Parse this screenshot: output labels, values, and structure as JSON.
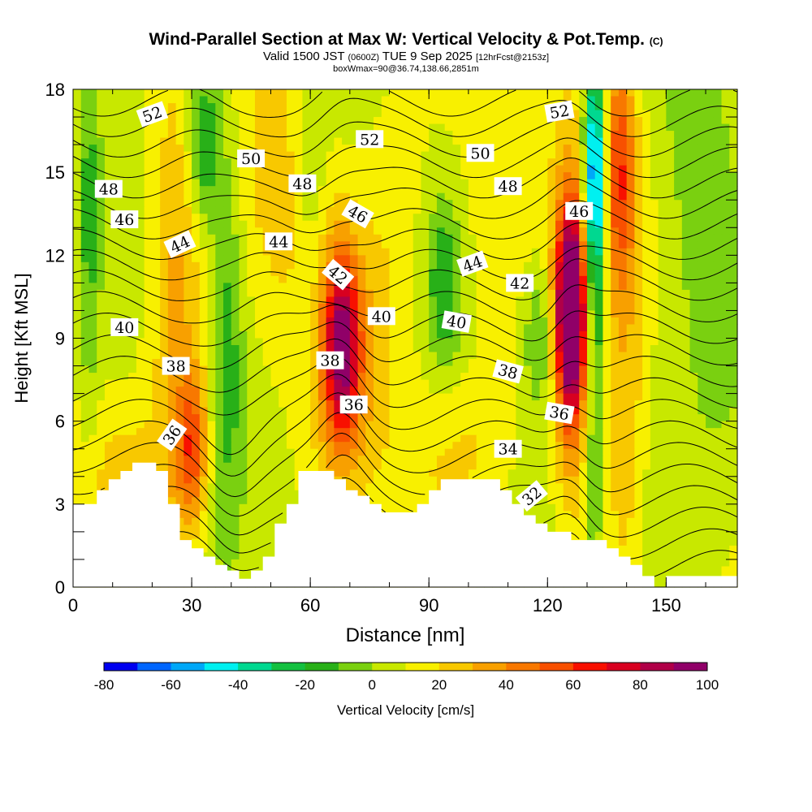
{
  "header": {
    "title": "Wind-Parallel Section at Max W: Vertical Velocity & Pot.Temp.",
    "copyright": "(C)",
    "valid_prefix": "Valid 1500 JST",
    "valid_utc": "(0600Z)",
    "valid_date": "TUE 9 Sep 2025",
    "forecast_info": "[12hrFcst@2153z]",
    "box_info": "boxWmax=90@36.74,138.66,2851m"
  },
  "chart_data": {
    "type": "heatmap",
    "title": "Wind-Parallel Section at Max W: Vertical Velocity & Pot.Temp.",
    "xlabel": "Distance [nm]",
    "ylabel": "Height [Kft MSL]",
    "xlim": [
      0,
      168
    ],
    "ylim": [
      0,
      18
    ],
    "x_ticks": [
      0,
      30,
      60,
      90,
      120,
      150
    ],
    "y_ticks": [
      0,
      3,
      6,
      9,
      12,
      15,
      18
    ],
    "colorbar": {
      "label": "Vertical Velocity [cm/s]",
      "range": [
        -80,
        100
      ],
      "step": 10,
      "tick_labels": [
        -80,
        -60,
        -40,
        -20,
        0,
        20,
        40,
        60,
        80,
        100
      ],
      "colors": [
        "#0000f0",
        "#0066ff",
        "#00a8f8",
        "#00f0f0",
        "#00d890",
        "#14c040",
        "#28b018",
        "#7ad010",
        "#c8e800",
        "#f8f000",
        "#f8c800",
        "#f8a000",
        "#f87800",
        "#f85000",
        "#f81000",
        "#d80020",
        "#b00048",
        "#900068"
      ]
    },
    "velocity_field": [
      {
        "x": 4,
        "y": 13,
        "sx": 2,
        "sy": 5,
        "v": -22
      },
      {
        "x": 26,
        "y": 12,
        "sx": 5,
        "sy": 6,
        "v": 26
      },
      {
        "x": 30,
        "y": 5,
        "sx": 3,
        "sy": 2,
        "v": 44
      },
      {
        "x": 33,
        "y": 16,
        "sx": 3,
        "sy": 2,
        "v": -32
      },
      {
        "x": 39,
        "y": 9,
        "sx": 3,
        "sy": 5,
        "v": -22
      },
      {
        "x": 52,
        "y": 13,
        "sx": 8,
        "sy": 4,
        "v": 14
      },
      {
        "x": 60,
        "y": 15,
        "sx": 3,
        "sy": 4,
        "v": -16
      },
      {
        "x": 68,
        "y": 8.8,
        "sx": 3,
        "sy": 2.2,
        "v": 64
      },
      {
        "x": 68,
        "y": 7.5,
        "sx": 6,
        "sy": 3.5,
        "v": 25
      },
      {
        "x": 82,
        "y": 14,
        "sx": 6,
        "sy": 5,
        "v": 12
      },
      {
        "x": 94,
        "y": 11,
        "sx": 3,
        "sy": 2,
        "v": -25
      },
      {
        "x": 104,
        "y": 13,
        "sx": 7,
        "sy": 5,
        "v": 8
      },
      {
        "x": 118,
        "y": 9,
        "sx": 3,
        "sy": 2,
        "v": -22
      },
      {
        "x": 126,
        "y": 10,
        "sx": 2.5,
        "sy": 2.3,
        "v": 96
      },
      {
        "x": 126,
        "y": 9.5,
        "sx": 3.5,
        "sy": 4.5,
        "v": 42
      },
      {
        "x": 132,
        "y": 15,
        "sx": 2,
        "sy": 3,
        "v": -70
      },
      {
        "x": 132,
        "y": 8,
        "sx": 2,
        "sy": 6,
        "v": -30
      },
      {
        "x": 138,
        "y": 15,
        "sx": 3,
        "sy": 3,
        "v": 44
      },
      {
        "x": 140,
        "y": 9,
        "sx": 5,
        "sy": 7,
        "v": 16
      },
      {
        "x": 148,
        "y": 5,
        "sx": 4,
        "sy": 4,
        "v": -14
      },
      {
        "x": 160,
        "y": 12,
        "sx": 5,
        "sy": 6,
        "v": -14
      },
      {
        "x": 15,
        "y": 3.5,
        "sx": 8,
        "sy": 2,
        "v": 14
      },
      {
        "x": 100,
        "y": 5,
        "sx": 10,
        "sy": 2,
        "v": 14
      }
    ],
    "terrain_kft": [
      [
        0,
        3.0
      ],
      [
        6,
        3.0
      ],
      [
        6,
        3.5
      ],
      [
        9,
        3.5
      ],
      [
        9,
        3.9
      ],
      [
        12,
        3.9
      ],
      [
        12,
        4.2
      ],
      [
        15,
        4.2
      ],
      [
        15,
        4.5
      ],
      [
        21,
        4.5
      ],
      [
        21,
        4.2
      ],
      [
        24,
        4.2
      ],
      [
        24,
        3.0
      ],
      [
        27,
        3.0
      ],
      [
        27,
        1.7
      ],
      [
        30,
        1.7
      ],
      [
        30,
        1.4
      ],
      [
        33,
        1.4
      ],
      [
        33,
        1.1
      ],
      [
        36,
        1.1
      ],
      [
        36,
        0.8
      ],
      [
        39,
        0.8
      ],
      [
        39,
        0.6
      ],
      [
        42,
        0.6
      ],
      [
        42,
        0.3
      ],
      [
        45,
        0.3
      ],
      [
        45,
        0.6
      ],
      [
        48,
        0.6
      ],
      [
        48,
        1.1
      ],
      [
        51,
        1.1
      ],
      [
        51,
        2.3
      ],
      [
        54,
        2.3
      ],
      [
        54,
        3.0
      ],
      [
        57,
        3.0
      ],
      [
        57,
        4.2
      ],
      [
        66,
        4.2
      ],
      [
        66,
        3.9
      ],
      [
        69,
        3.9
      ],
      [
        69,
        3.5
      ],
      [
        72,
        3.5
      ],
      [
        72,
        3.3
      ],
      [
        75,
        3.3
      ],
      [
        75,
        3.0
      ],
      [
        78,
        3.0
      ],
      [
        78,
        2.7
      ],
      [
        87,
        2.7
      ],
      [
        87,
        3.0
      ],
      [
        90,
        3.0
      ],
      [
        90,
        3.5
      ],
      [
        93,
        3.5
      ],
      [
        93,
        3.9
      ],
      [
        108,
        3.9
      ],
      [
        108,
        3.5
      ],
      [
        111,
        3.5
      ],
      [
        111,
        3.0
      ],
      [
        114,
        3.0
      ],
      [
        114,
        2.6
      ],
      [
        117,
        2.6
      ],
      [
        117,
        2.3
      ],
      [
        120,
        2.3
      ],
      [
        120,
        2.0
      ],
      [
        126,
        2.0
      ],
      [
        126,
        1.7
      ],
      [
        135,
        1.7
      ],
      [
        135,
        1.4
      ],
      [
        138,
        1.4
      ],
      [
        138,
        1.1
      ],
      [
        141,
        1.1
      ],
      [
        141,
        0.8
      ],
      [
        144,
        0.8
      ],
      [
        144,
        0.4
      ],
      [
        147,
        0.4
      ],
      [
        147,
        0.0
      ],
      [
        150,
        0.0
      ],
      [
        150,
        0.4
      ],
      [
        168,
        0.4
      ],
      [
        168,
        0.0
      ]
    ],
    "theta_contours": [
      32,
      33,
      34,
      35,
      36,
      37,
      38,
      39,
      40,
      41,
      42,
      43,
      44,
      45,
      46,
      47,
      48,
      49,
      50,
      51,
      52,
      53,
      54
    ],
    "contour_labels": [
      {
        "x": 25,
        "y": 5.5,
        "text": "36",
        "angle": -55
      },
      {
        "x": 26,
        "y": 8.0,
        "text": "38",
        "angle": 0
      },
      {
        "x": 13,
        "y": 9.4,
        "text": "40",
        "angle": 0
      },
      {
        "x": 27,
        "y": 12.4,
        "text": "44",
        "angle": -25
      },
      {
        "x": 13,
        "y": 13.3,
        "text": "46",
        "angle": 0
      },
      {
        "x": 9,
        "y": 14.4,
        "text": "48",
        "angle": 0
      },
      {
        "x": 20,
        "y": 17.1,
        "text": "52",
        "angle": -20
      },
      {
        "x": 45,
        "y": 15.5,
        "text": "50",
        "angle": 0
      },
      {
        "x": 52,
        "y": 12.5,
        "text": "44",
        "angle": 0
      },
      {
        "x": 58,
        "y": 14.6,
        "text": "48",
        "angle": 0
      },
      {
        "x": 72,
        "y": 13.5,
        "text": "46",
        "angle": 30
      },
      {
        "x": 67,
        "y": 11.3,
        "text": "42",
        "angle": 40
      },
      {
        "x": 78,
        "y": 9.8,
        "text": "40",
        "angle": 0
      },
      {
        "x": 65,
        "y": 8.2,
        "text": "38",
        "angle": 0
      },
      {
        "x": 71,
        "y": 6.6,
        "text": "36",
        "angle": 0
      },
      {
        "x": 75,
        "y": 16.2,
        "text": "52",
        "angle": 0
      },
      {
        "x": 97,
        "y": 9.6,
        "text": "40",
        "angle": 10
      },
      {
        "x": 101,
        "y": 11.7,
        "text": "44",
        "angle": -20
      },
      {
        "x": 103,
        "y": 15.7,
        "text": "50",
        "angle": 0
      },
      {
        "x": 113,
        "y": 11.0,
        "text": "42",
        "angle": 0
      },
      {
        "x": 110,
        "y": 14.5,
        "text": "48",
        "angle": 0
      },
      {
        "x": 110,
        "y": 7.8,
        "text": "38",
        "angle": 15
      },
      {
        "x": 110,
        "y": 5.0,
        "text": "34",
        "angle": 0
      },
      {
        "x": 116,
        "y": 3.3,
        "text": "32",
        "angle": -40
      },
      {
        "x": 123,
        "y": 17.2,
        "text": "52",
        "angle": -10
      },
      {
        "x": 128,
        "y": 13.6,
        "text": "46",
        "angle": 0
      },
      {
        "x": 123,
        "y": 6.3,
        "text": "36",
        "angle": 10
      }
    ]
  }
}
